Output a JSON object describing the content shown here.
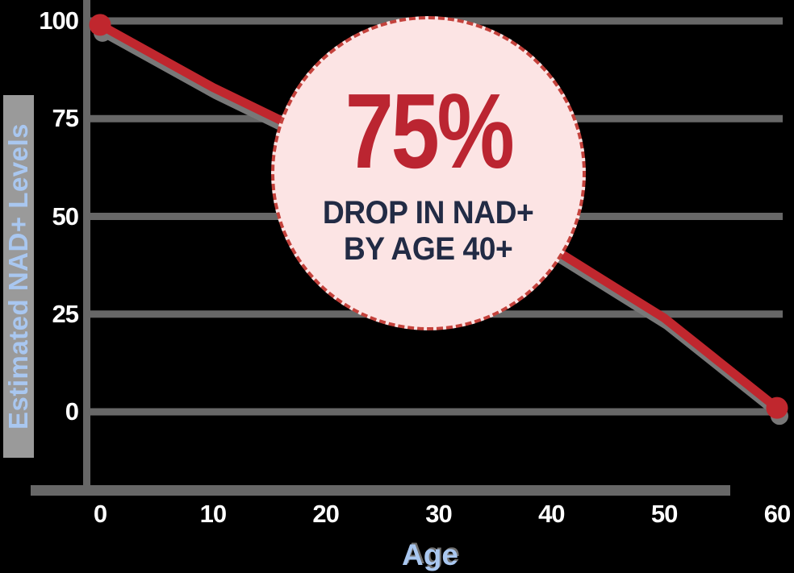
{
  "background_color": "#000000",
  "colors": {
    "line_red": "#c0272e",
    "dot_red": "#c0272e",
    "line_shadow_gray": "#787878",
    "grid_gray": "#676767",
    "axis_gray": "#676767",
    "tick_label_white": "#ffffff",
    "axis_title_blue": "#a9c7f0",
    "circle_fill_pink": "#fce4e4",
    "circle_border_red": "#c4423c",
    "headline_red": "#bb2531",
    "subtext_navy": "#222b45"
  },
  "chart_data": {
    "type": "line",
    "title": "",
    "xlabel": "Age",
    "ylabel": "Estimated NAD+ Levels",
    "x_ticks": [
      "0",
      "10",
      "20",
      "30",
      "40",
      "50",
      "60"
    ],
    "y_ticks": [
      "100",
      "75",
      "50",
      "25",
      "0"
    ],
    "ylim": [
      0,
      100
    ],
    "grid": "horizontal",
    "legend": "none",
    "x": [
      0,
      10,
      20,
      30,
      40,
      50,
      60
    ],
    "series": [
      {
        "name": "Estimated NAD+ level",
        "color": "#c0272e",
        "values": [
          99,
          83,
          69,
          55,
          42,
          24,
          1
        ],
        "endpoint_markers": true
      }
    ]
  },
  "annotation": {
    "headline": "75%",
    "line1": "DROP IN NAD+",
    "line2": "BY AGE 40+"
  }
}
